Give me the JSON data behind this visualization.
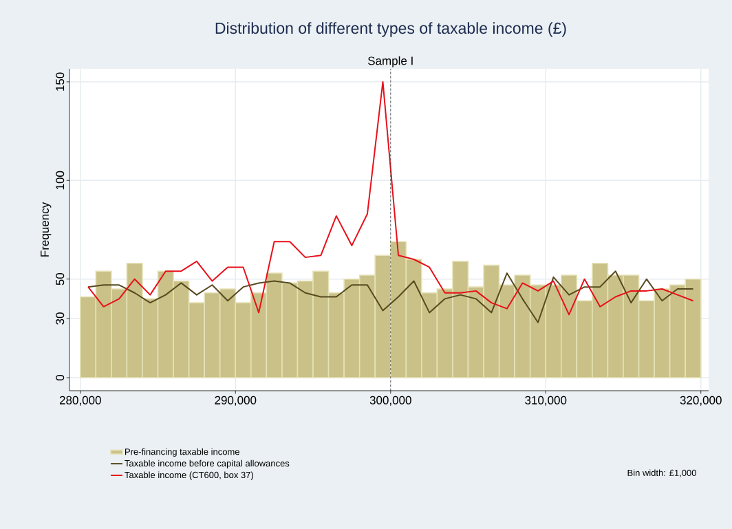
{
  "chart_data": {
    "type": "histogram",
    "title": "Distribution of different types of taxable income (£)",
    "ylabel": "Frequency",
    "xlim": [
      279300,
      320500
    ],
    "ylim": [
      -6.6,
      156.6
    ],
    "xticks": [
      {
        "value": 280000,
        "label": "280,000"
      },
      {
        "value": 290000,
        "label": "290,000"
      },
      {
        "value": 300000,
        "label": "300,000"
      },
      {
        "value": 310000,
        "label": "310,000"
      },
      {
        "value": 320000,
        "label": "320,000"
      }
    ],
    "yticks": [
      0,
      30,
      50,
      100,
      150
    ],
    "grid": true,
    "legend": "bottom",
    "bins": [
      280000,
      281000,
      282000,
      283000,
      284000,
      285000,
      286000,
      287000,
      288000,
      289000,
      290000,
      291000,
      292000,
      293000,
      294000,
      295000,
      296000,
      297000,
      298000,
      299000,
      300000,
      301000,
      302000,
      303000,
      304000,
      305000,
      306000,
      307000,
      308000,
      309000,
      310000,
      311000,
      312000,
      313000,
      314000,
      315000,
      316000,
      317000,
      318000,
      319000,
      320000
    ],
    "series": [
      {
        "name": "Pre-financing taxable income",
        "color": "#c9c187",
        "values": [
          41,
          54,
          45,
          58,
          40,
          54,
          49,
          38,
          43,
          45,
          38,
          43,
          53,
          48,
          49,
          54,
          43,
          50,
          52,
          62,
          69,
          60,
          43,
          45,
          59,
          46,
          57,
          47,
          52,
          47,
          47,
          52,
          39,
          58,
          52,
          52,
          39,
          45,
          47,
          50
        ]
      },
      {
        "name": "Taxable income before capital allowances",
        "type": "line",
        "color": "#57491f",
        "x": [
          280500,
          281500,
          282500,
          283500,
          284500,
          285500,
          286500,
          287500,
          288500,
          289500,
          290500,
          291500,
          292500,
          293500,
          294500,
          295500,
          296500,
          297500,
          298500,
          299500,
          300500,
          301500,
          302500,
          303500,
          304500,
          305500,
          306500,
          307500,
          308500,
          309500,
          310500,
          311500,
          312500,
          313500,
          314500,
          315500,
          316500,
          317500,
          318500,
          319500
        ],
        "values": [
          46,
          47,
          47,
          43,
          38,
          42,
          48,
          42,
          47,
          39,
          46,
          48,
          49,
          48,
          43,
          41,
          41,
          47,
          47,
          34,
          41,
          49,
          33,
          40,
          42,
          40,
          33,
          53,
          40,
          28,
          51,
          42,
          46,
          46,
          54,
          38,
          50,
          39,
          45,
          45
        ]
      },
      {
        "name": "Taxable income (CT600, box 37)",
        "type": "line",
        "color": "#e8101a",
        "x": [
          280500,
          281500,
          282500,
          283500,
          284500,
          285500,
          286500,
          287500,
          288500,
          289500,
          290500,
          291500,
          292500,
          293500,
          294500,
          295500,
          296500,
          297500,
          298500,
          299500,
          300500,
          301500,
          302500,
          303500,
          304500,
          305500,
          306500,
          307500,
          308500,
          309500,
          310500,
          311500,
          312500,
          313500,
          314500,
          315500,
          316500,
          317500,
          318500,
          319500
        ],
        "values": [
          46,
          36,
          40,
          50,
          42,
          54,
          54,
          59,
          49,
          56,
          56,
          33,
          69,
          69,
          61,
          62,
          82,
          67,
          83,
          150,
          62,
          60,
          56,
          43,
          43,
          44,
          38,
          35,
          48,
          44,
          49,
          32,
          50,
          36,
          41,
          44,
          44,
          45,
          42,
          39
        ]
      }
    ],
    "ref_lines": [
      {
        "axis": "x",
        "value": 300000,
        "label": "Sample I",
        "color": "#3a3a3a",
        "line_style": "dashed"
      }
    ],
    "annotations": [
      "Bin width: £1,000"
    ]
  }
}
